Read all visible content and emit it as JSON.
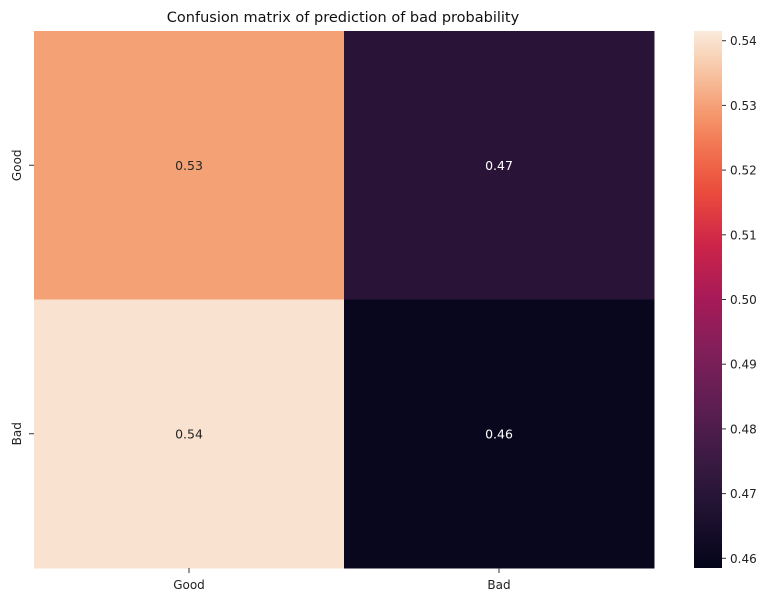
{
  "chart_data": {
    "type": "heatmap",
    "title": "Confusion matrix of prediction of bad probability",
    "xlabel": "",
    "ylabel": "",
    "x_categories": [
      "Good",
      "Bad"
    ],
    "y_categories": [
      "Good",
      "Bad"
    ],
    "values": [
      [
        0.53,
        0.47
      ],
      [
        0.54,
        0.46
      ]
    ],
    "value_labels": [
      [
        "0.53",
        "0.47"
      ],
      [
        "0.54",
        "0.46"
      ]
    ],
    "colorbar": {
      "range": [
        0.4585,
        0.5415
      ],
      "ticks": [
        0.46,
        0.47,
        0.48,
        0.49,
        0.5,
        0.51,
        0.52,
        0.53,
        0.54
      ],
      "tick_labels": [
        "0.46",
        "0.47",
        "0.48",
        "0.49",
        "0.50",
        "0.51",
        "0.52",
        "0.53",
        "0.54"
      ],
      "colormap": "rocket"
    },
    "grid": false
  }
}
